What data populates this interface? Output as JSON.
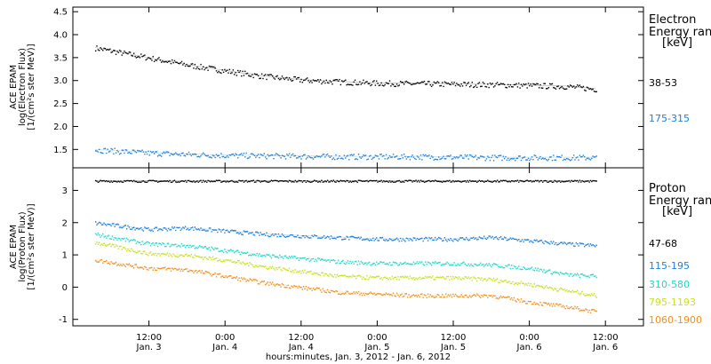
{
  "chart_data": [
    {
      "type": "scatter",
      "instrument": "ACE EPAM",
      "ylabel_lines": [
        "ACE EPAM",
        "log(Electron Flux)",
        "[1/(cm²s ster MeV)]"
      ],
      "ylim": [
        1.1,
        4.6
      ],
      "yticks": [
        1.5,
        2.0,
        2.5,
        3.0,
        3.5,
        4.0,
        4.5
      ],
      "ytick_labels": [
        "1.5",
        "2.0",
        "2.5",
        "3.0",
        "3.5",
        "4.0",
        "4.5"
      ],
      "legend_title": [
        "Electron",
        "Energy ranges",
        "[keV]"
      ],
      "series": [
        {
          "name": "38-53",
          "color": "#000000",
          "x": [
            -2.5,
            6,
            12,
            18,
            24,
            30,
            36,
            42,
            48,
            54,
            60,
            66,
            72,
            76.5
          ],
          "y": [
            3.72,
            3.5,
            3.35,
            3.22,
            3.1,
            3.02,
            2.98,
            2.95,
            2.94,
            2.93,
            2.92,
            2.9,
            2.88,
            2.82
          ]
        },
        {
          "name": "175-315",
          "color": "#1f7fd8",
          "x": [
            -2.5,
            6,
            12,
            18,
            24,
            30,
            36,
            42,
            48,
            54,
            60,
            66,
            72,
            76.5
          ],
          "y": [
            1.5,
            1.43,
            1.4,
            1.38,
            1.37,
            1.36,
            1.35,
            1.35,
            1.35,
            1.34,
            1.33,
            1.33,
            1.33,
            1.33
          ]
        }
      ]
    },
    {
      "type": "scatter",
      "instrument": "ACE EPAM",
      "ylabel_lines": [
        "ACE EPAM",
        "log(Proton Flux)",
        "[1/(cm²s ster MeV)]"
      ],
      "ylim": [
        -1.2,
        3.7
      ],
      "yticks": [
        -1,
        0,
        1,
        2,
        3
      ],
      "ytick_labels": [
        "-1",
        "0",
        "1",
        "2",
        "3"
      ],
      "legend_title": [
        "Proton",
        "Energy ranges",
        "[keV]"
      ],
      "series": [
        {
          "name": "47-68",
          "color": "#000000",
          "x": [
            -2.5,
            6,
            12,
            18,
            24,
            30,
            36,
            42,
            48,
            54,
            60,
            66,
            72,
            76.5
          ],
          "y": [
            3.3,
            3.3,
            3.3,
            3.3,
            3.3,
            3.3,
            3.3,
            3.3,
            3.3,
            3.3,
            3.3,
            3.3,
            3.3,
            3.3
          ]
        },
        {
          "name": "115-195",
          "color": "#1f7fd8",
          "x": [
            -2.5,
            6,
            12,
            18,
            24,
            30,
            36,
            42,
            48,
            54,
            60,
            66,
            72,
            76.5
          ],
          "y": [
            2.0,
            1.8,
            1.85,
            1.75,
            1.65,
            1.6,
            1.55,
            1.5,
            1.5,
            1.5,
            1.55,
            1.45,
            1.35,
            1.3
          ]
        },
        {
          "name": "310-580",
          "color": "#22d8c8",
          "x": [
            -2.5,
            6,
            12,
            18,
            24,
            30,
            36,
            42,
            48,
            54,
            60,
            66,
            72,
            76.5
          ],
          "y": [
            1.65,
            1.35,
            1.3,
            1.15,
            1.0,
            0.9,
            0.8,
            0.75,
            0.75,
            0.75,
            0.7,
            0.6,
            0.4,
            0.35
          ]
        },
        {
          "name": "795-1193",
          "color": "#c8e020",
          "x": [
            -2.5,
            6,
            12,
            18,
            24,
            30,
            36,
            42,
            48,
            54,
            60,
            66,
            72,
            76.5
          ],
          "y": [
            1.4,
            1.05,
            1.0,
            0.85,
            0.65,
            0.5,
            0.35,
            0.3,
            0.3,
            0.3,
            0.25,
            0.1,
            -0.1,
            -0.25
          ]
        },
        {
          "name": "1060-1900",
          "color": "#f09020",
          "x": [
            -2.5,
            6,
            12,
            18,
            24,
            30,
            36,
            42,
            48,
            54,
            60,
            66,
            72,
            76.5
          ],
          "y": [
            0.85,
            0.6,
            0.55,
            0.35,
            0.15,
            0.0,
            -0.15,
            -0.2,
            -0.25,
            -0.25,
            -0.25,
            -0.45,
            -0.6,
            -0.75
          ]
        }
      ]
    }
  ],
  "x_axis": {
    "xlim": [
      -6,
      84
    ],
    "ticks": [
      6,
      18,
      30,
      42,
      54,
      66,
      78
    ],
    "tick_labels_time": [
      "12:00",
      "0:00",
      "12:00",
      "0:00",
      "12:00",
      "0:00",
      "12:00"
    ],
    "tick_labels_date": [
      "Jan. 3",
      "Jan. 4",
      "Jan. 4",
      "Jan. 5",
      "Jan. 5",
      "Jan. 6",
      "Jan. 6"
    ],
    "label": "hours:minutes, Jan.  3, 2012 - Jan.  6, 2012"
  }
}
